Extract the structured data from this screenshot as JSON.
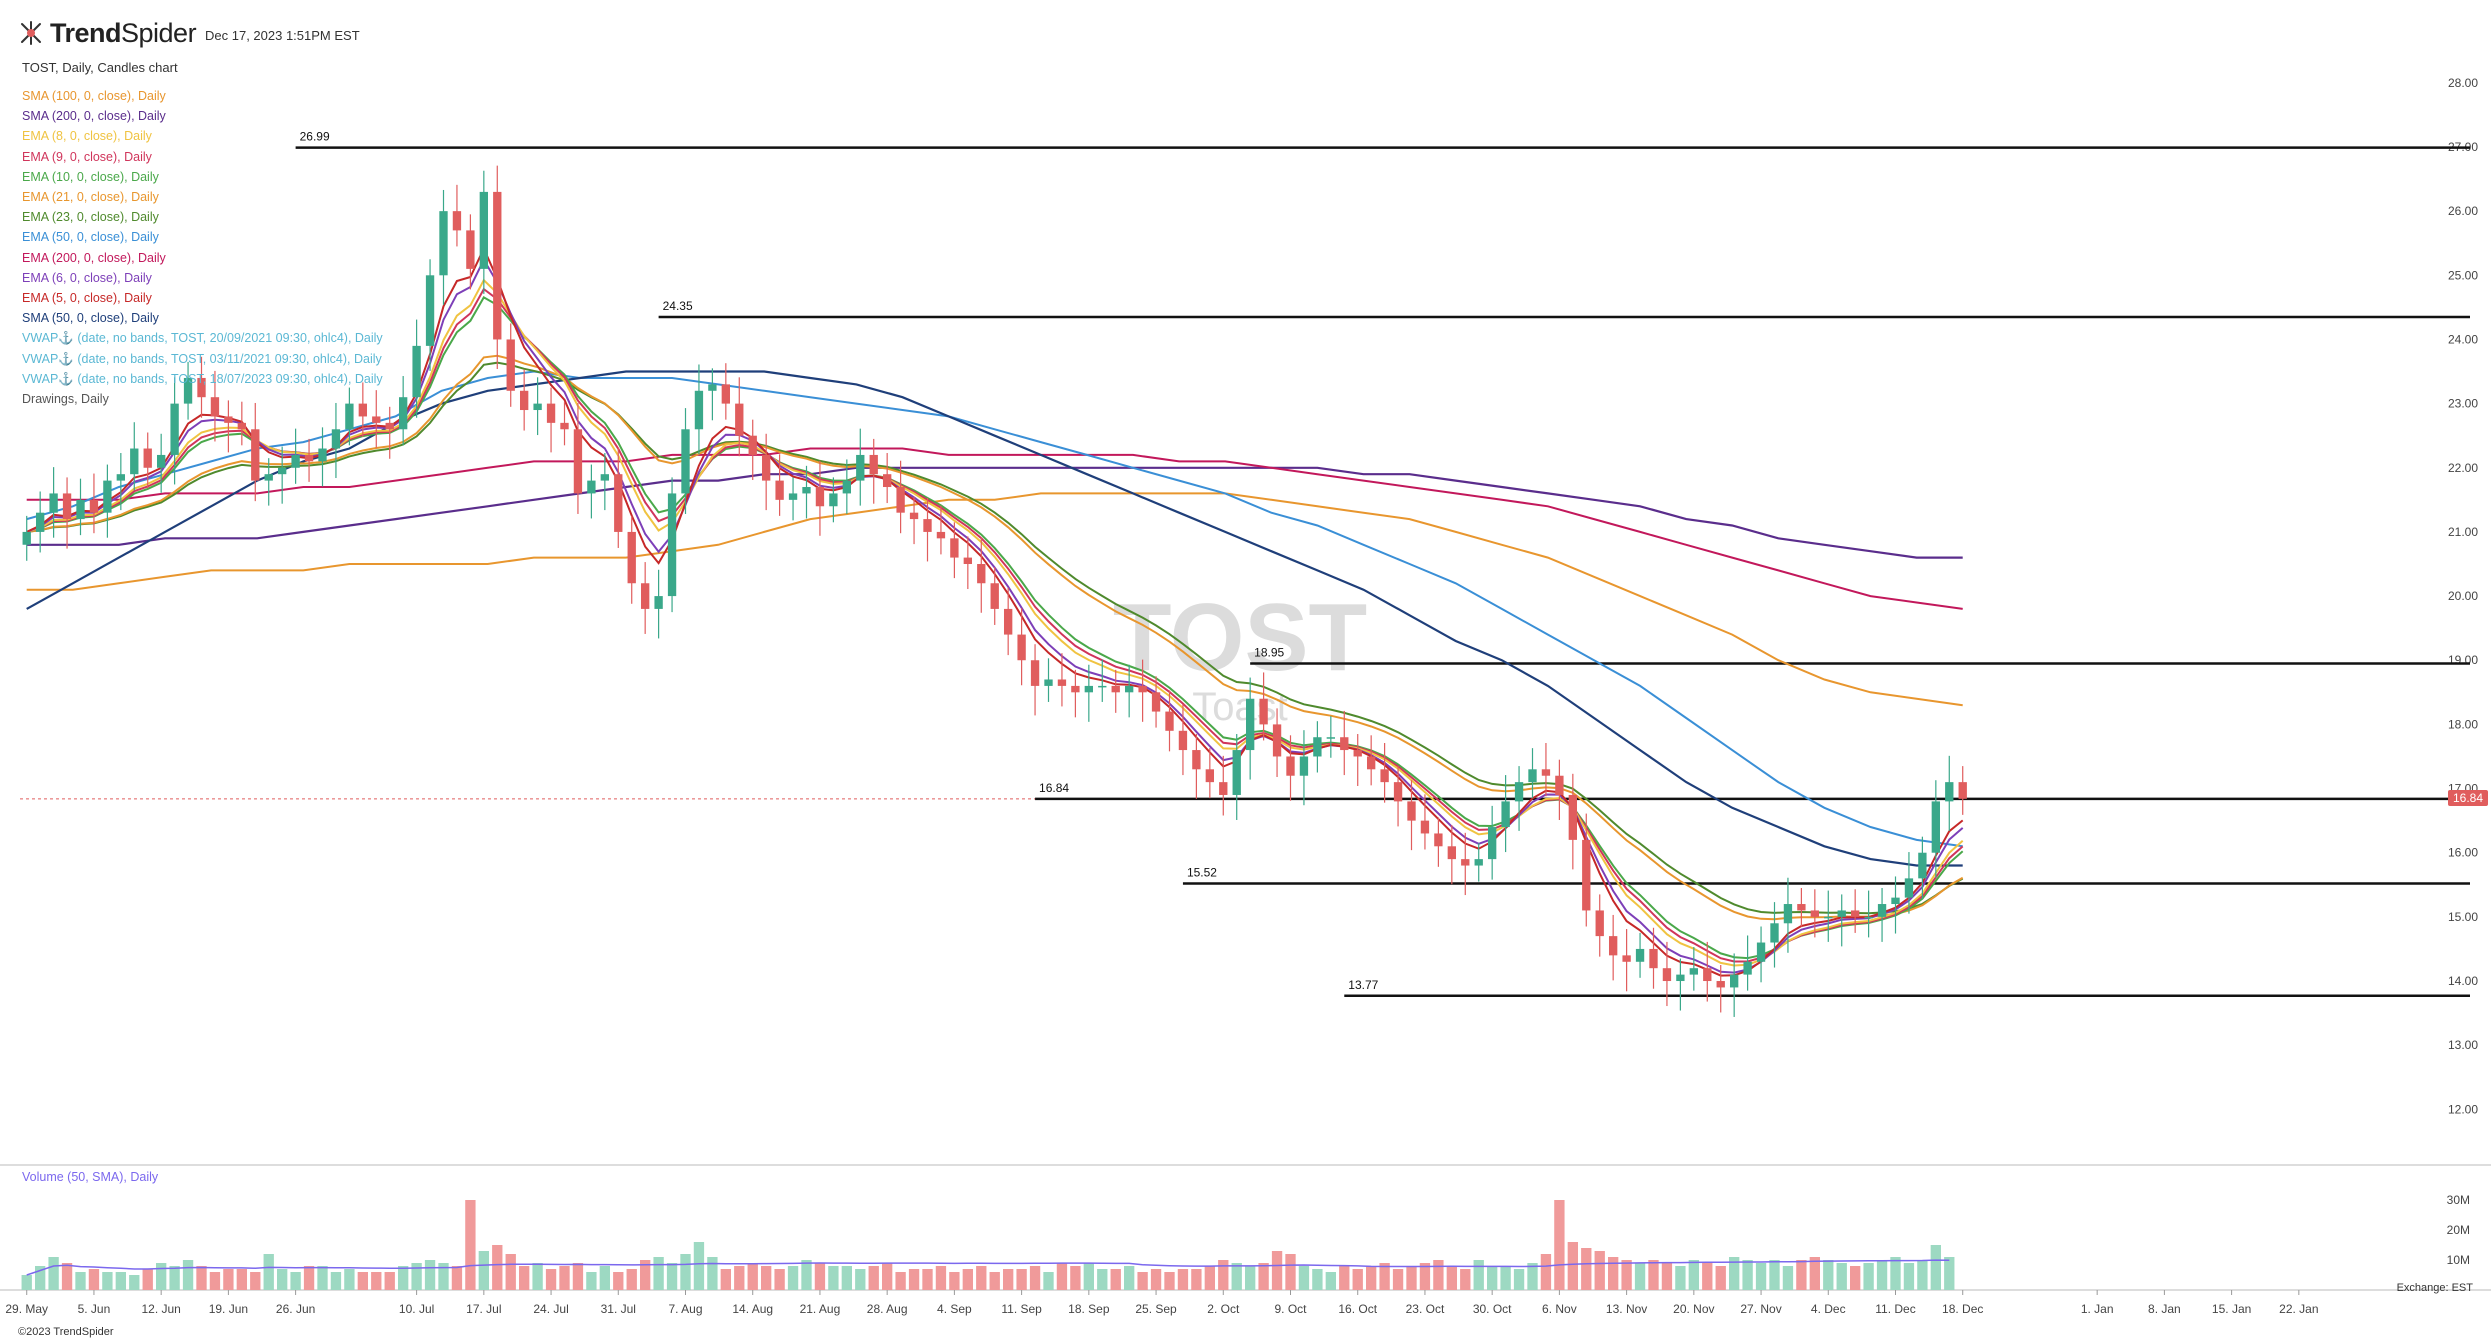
{
  "header": {
    "brand_bold": "Trend",
    "brand_light": "Spider",
    "timestamp": "Dec 17, 2023 1:51PM EST",
    "subtitle": "TOST, Daily, Candles chart"
  },
  "legend": [
    {
      "label": "SMA (100, 0, close), Daily",
      "color": "#e8962e"
    },
    {
      "label": "SMA (200, 0, close), Daily",
      "color": "#5a2d8c"
    },
    {
      "label": "EMA (8, 0, close), Daily",
      "color": "#f0c341"
    },
    {
      "label": "EMA (9, 0, close), Daily",
      "color": "#d0355b"
    },
    {
      "label": "EMA (10, 0, close), Daily",
      "color": "#4aa84a"
    },
    {
      "label": "EMA (21, 0, close), Daily",
      "color": "#e8962e"
    },
    {
      "label": "EMA (23, 0, close), Daily",
      "color": "#4f8a2d"
    },
    {
      "label": "EMA (50, 0, close), Daily",
      "color": "#3a8fd6"
    },
    {
      "label": "EMA (200, 0, close), Daily",
      "color": "#c2185b"
    },
    {
      "label": "EMA (6, 0, close), Daily",
      "color": "#7d3fb8"
    },
    {
      "label": "EMA (5, 0, close), Daily",
      "color": "#c62828"
    },
    {
      "label": "SMA (50, 0, close), Daily",
      "color": "#1f3f7a"
    },
    {
      "label": "VWAP⚓ (date, no bands, TOST, 20/09/2021 09:30, ohlc4), Daily",
      "color": "#5bb8d4"
    },
    {
      "label": "VWAP⚓ (date, no bands, TOST, 03/11/2021 09:30, ohlc4), Daily",
      "color": "#5bb8d4"
    },
    {
      "label": "VWAP⚓ (date, no bands, TOST, 18/07/2023 09:30, ohlc4), Daily",
      "color": "#5bb8d4"
    },
    {
      "label": "Drawings, Daily",
      "color": "#555555"
    }
  ],
  "volume_title": "Volume (50, SMA), Daily",
  "exchange": "Exchange: EST",
  "copyright": "©2023 TrendSpider",
  "watermark": {
    "symbol": "TOST",
    "name": "Toast"
  },
  "last_price_label": "16.84",
  "colors": {
    "up": "#3aa88a",
    "down": "#e05d5d",
    "up_vol": "#9dd9c2",
    "down_vol": "#f09a9a",
    "grid": "#dddddd"
  },
  "chart_data": {
    "type": "candlestick",
    "y_ticks": [
      "12.00",
      "13.00",
      "14.00",
      "15.00",
      "16.00",
      "17.00",
      "18.00",
      "19.00",
      "20.00",
      "21.00",
      "22.00",
      "23.00",
      "24.00",
      "25.00",
      "26.00",
      "27.00",
      "28.00"
    ],
    "ylim": [
      11.6,
      28.2
    ],
    "volume_ticks": [
      "10M",
      "20M",
      "30M"
    ],
    "x_ticks": [
      {
        "label": "29. May",
        "i": 0
      },
      {
        "label": "5. Jun",
        "i": 5
      },
      {
        "label": "12. Jun",
        "i": 10
      },
      {
        "label": "19. Jun",
        "i": 15
      },
      {
        "label": "26. Jun",
        "i": 20
      },
      {
        "label": "10. Jul",
        "i": 29
      },
      {
        "label": "17. Jul",
        "i": 34
      },
      {
        "label": "24. Jul",
        "i": 39
      },
      {
        "label": "31. Jul",
        "i": 44
      },
      {
        "label": "7. Aug",
        "i": 49
      },
      {
        "label": "14. Aug",
        "i": 54
      },
      {
        "label": "21. Aug",
        "i": 59
      },
      {
        "label": "28. Aug",
        "i": 64
      },
      {
        "label": "4. Sep",
        "i": 69
      },
      {
        "label": "11. Sep",
        "i": 74
      },
      {
        "label": "18. Sep",
        "i": 79
      },
      {
        "label": "25. Sep",
        "i": 84
      },
      {
        "label": "2. Oct",
        "i": 89
      },
      {
        "label": "9. Oct",
        "i": 94
      },
      {
        "label": "16. Oct",
        "i": 99
      },
      {
        "label": "23. Oct",
        "i": 104
      },
      {
        "label": "30. Oct",
        "i": 109
      },
      {
        "label": "6. Nov",
        "i": 114
      },
      {
        "label": "13. Nov",
        "i": 119
      },
      {
        "label": "20. Nov",
        "i": 124
      },
      {
        "label": "27. Nov",
        "i": 129
      },
      {
        "label": "4. Dec",
        "i": 134
      },
      {
        "label": "11. Dec",
        "i": 139
      },
      {
        "label": "18. Dec",
        "i": 144
      },
      {
        "label": "1. Jan",
        "i": 154
      },
      {
        "label": "8. Jan",
        "i": 159
      },
      {
        "label": "15. Jan",
        "i": 164
      },
      {
        "label": "22. Jan",
        "i": 169
      }
    ],
    "levels": [
      {
        "value": 26.99,
        "label": "26.99",
        "from": 20
      },
      {
        "value": 24.35,
        "label": "24.35",
        "from": 47
      },
      {
        "value": 18.95,
        "label": "18.95",
        "from": 91
      },
      {
        "value": 16.84,
        "label": "16.84",
        "from": 75
      },
      {
        "value": 15.52,
        "label": "15.52",
        "from": 86
      },
      {
        "value": 13.77,
        "label": "13.77",
        "from": 98
      }
    ],
    "last_price": 16.84,
    "closes": [
      21.0,
      21.3,
      21.6,
      21.2,
      21.5,
      21.3,
      21.8,
      21.9,
      22.3,
      22.0,
      22.2,
      23.0,
      23.4,
      23.1,
      22.8,
      22.7,
      22.6,
      21.8,
      21.9,
      22.0,
      22.2,
      22.1,
      22.3,
      22.6,
      23.0,
      22.8,
      22.7,
      22.6,
      23.1,
      23.9,
      25.0,
      26.0,
      25.7,
      25.1,
      26.3,
      24.0,
      23.2,
      22.9,
      23.0,
      22.7,
      22.6,
      21.6,
      21.8,
      21.9,
      21.0,
      20.2,
      19.8,
      20.0,
      21.6,
      22.6,
      23.2,
      23.3,
      23.0,
      22.5,
      22.2,
      21.8,
      21.5,
      21.6,
      21.7,
      21.4,
      21.6,
      21.8,
      22.2,
      21.9,
      21.7,
      21.3,
      21.2,
      21.0,
      20.9,
      20.6,
      20.5,
      20.2,
      19.8,
      19.4,
      19.0,
      18.6,
      18.7,
      18.6,
      18.5,
      18.6,
      18.6,
      18.5,
      18.6,
      18.5,
      18.2,
      17.9,
      17.6,
      17.3,
      17.1,
      16.9,
      17.6,
      18.4,
      18.0,
      17.5,
      17.2,
      17.5,
      17.8,
      17.8,
      17.6,
      17.5,
      17.3,
      17.1,
      16.8,
      16.5,
      16.3,
      16.1,
      15.9,
      15.8,
      15.9,
      16.4,
      16.8,
      17.1,
      17.3,
      17.2,
      16.9,
      16.2,
      15.1,
      14.7,
      14.4,
      14.3,
      14.5,
      14.2,
      14.0,
      14.1,
      14.2,
      14.0,
      13.9,
      14.1,
      14.3,
      14.6,
      14.9,
      15.2,
      15.1,
      15.0,
      15.0,
      15.1,
      15.0,
      15.0,
      15.2,
      15.3,
      15.6,
      16.0,
      16.8,
      17.1,
      16.84
    ],
    "volume_millions": [
      5,
      8,
      11,
      9,
      6,
      7,
      6,
      6,
      5,
      7,
      9,
      8,
      10,
      8,
      6,
      7,
      7,
      6,
      12,
      7,
      6,
      8,
      8,
      6,
      7,
      6,
      6,
      6,
      8,
      9,
      10,
      9,
      8,
      30,
      13,
      15,
      12,
      8,
      9,
      7,
      8,
      9,
      6,
      8,
      6,
      7,
      10,
      11,
      9,
      12,
      16,
      11,
      7,
      8,
      9,
      8,
      7,
      8,
      10,
      9,
      8,
      8,
      7,
      8,
      9,
      6,
      7,
      7,
      8,
      6,
      7,
      8,
      6,
      7,
      7,
      8,
      6,
      9,
      8,
      9,
      7,
      7,
      8,
      6,
      7,
      6,
      7,
      7,
      8,
      10,
      9,
      8,
      9,
      13,
      12,
      8,
      7,
      6,
      8,
      7,
      8,
      9,
      7,
      8,
      9,
      10,
      8,
      7,
      10,
      8,
      8,
      7,
      9,
      12,
      30,
      16,
      14,
      13,
      11,
      10,
      9,
      10,
      9,
      8,
      10,
      9,
      8,
      11,
      10,
      9,
      10,
      8,
      10,
      11,
      10,
      9,
      8,
      9,
      10,
      11,
      9,
      10,
      15,
      11
    ],
    "sma100": [
      20.1,
      20.1,
      20.2,
      20.3,
      20.4,
      20.4,
      20.4,
      20.5,
      20.5,
      20.5,
      20.5,
      20.6,
      20.6,
      20.6,
      20.7,
      20.8,
      21.0,
      21.2,
      21.3,
      21.4,
      21.5,
      21.5,
      21.6,
      21.6,
      21.6,
      21.6,
      21.6,
      21.5,
      21.4,
      21.3,
      21.2,
      21.0,
      20.8,
      20.6,
      20.3,
      20.0,
      19.7,
      19.4,
      19.0,
      18.7,
      18.5,
      18.4,
      18.3
    ],
    "sma200": [
      20.8,
      20.8,
      20.8,
      20.9,
      20.9,
      20.9,
      21.0,
      21.1,
      21.2,
      21.3,
      21.4,
      21.5,
      21.6,
      21.7,
      21.8,
      21.8,
      21.9,
      21.9,
      22.0,
      22.0,
      22.0,
      22.0,
      22.0,
      22.0,
      22.0,
      22.0,
      22.0,
      22.0,
      22.0,
      21.9,
      21.9,
      21.8,
      21.7,
      21.6,
      21.5,
      21.4,
      21.2,
      21.1,
      20.9,
      20.8,
      20.7,
      20.6,
      20.6
    ],
    "ema200": [
      21.5,
      21.5,
      21.5,
      21.6,
      21.6,
      21.6,
      21.7,
      21.7,
      21.8,
      21.9,
      22.0,
      22.1,
      22.1,
      22.1,
      22.2,
      22.2,
      22.2,
      22.3,
      22.3,
      22.3,
      22.2,
      22.2,
      22.2,
      22.2,
      22.2,
      22.1,
      22.1,
      22.0,
      21.9,
      21.8,
      21.7,
      21.6,
      21.5,
      21.4,
      21.2,
      21.0,
      20.8,
      20.6,
      20.4,
      20.2,
      20.0,
      19.9,
      19.8
    ],
    "ema50": [
      21.2,
      21.4,
      21.7,
      21.9,
      22.1,
      22.3,
      22.4,
      22.6,
      22.8,
      23.2,
      23.4,
      23.5,
      23.4,
      23.4,
      23.4,
      23.3,
      23.2,
      23.1,
      23.0,
      22.9,
      22.8,
      22.6,
      22.4,
      22.2,
      22.0,
      21.8,
      21.6,
      21.3,
      21.1,
      20.8,
      20.5,
      20.2,
      19.8,
      19.4,
      19.0,
      18.6,
      18.1,
      17.6,
      17.1,
      16.7,
      16.4,
      16.2,
      16.1
    ],
    "sma50": [
      19.8,
      20.2,
      20.6,
      21.0,
      21.4,
      21.8,
      22.1,
      22.3,
      22.7,
      23.0,
      23.2,
      23.3,
      23.4,
      23.5,
      23.5,
      23.5,
      23.5,
      23.4,
      23.3,
      23.1,
      22.8,
      22.5,
      22.2,
      21.9,
      21.6,
      21.3,
      21.0,
      20.7,
      20.4,
      20.1,
      19.7,
      19.3,
      19.0,
      18.6,
      18.1,
      17.6,
      17.1,
      16.7,
      16.4,
      16.1,
      15.9,
      15.8,
      15.8
    ]
  }
}
